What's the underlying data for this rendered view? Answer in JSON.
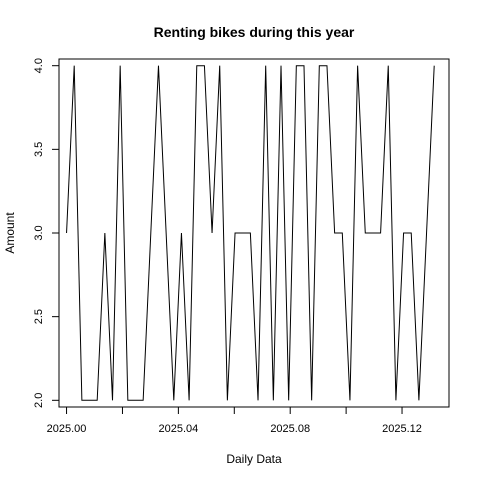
{
  "chart_data": {
    "type": "line",
    "title": "Renting bikes during this year",
    "xlabel": "Daily Data",
    "ylabel": "Amount",
    "xlim": [
      2024.9973,
      2025.1368
    ],
    "ylim": [
      1.96,
      4.04
    ],
    "x_ticks": [
      2025.0,
      2025.04,
      2025.08,
      2025.12
    ],
    "x_tick_labels": [
      "2025.00",
      "2025.04",
      "2025.08",
      "2025.12"
    ],
    "y_ticks": [
      2.0,
      2.5,
      3.0,
      3.5,
      4.0
    ],
    "y_tick_labels": [
      "2.0",
      "2.5",
      "3.0",
      "3.5",
      "4.0"
    ],
    "grid": false,
    "legend": "none",
    "line_color": "#000000",
    "x": [
      2025.0,
      2025.00274,
      2025.00548,
      2025.00822,
      2025.01096,
      2025.0137,
      2025.01644,
      2025.01918,
      2025.02192,
      2025.02466,
      2025.0274,
      2025.03014,
      2025.03288,
      2025.03562,
      2025.03836,
      2025.0411,
      2025.04384,
      2025.04658,
      2025.04932,
      2025.05205,
      2025.05479,
      2025.05753,
      2025.06027,
      2025.06301,
      2025.06575,
      2025.06849,
      2025.07123,
      2025.07397,
      2025.07671,
      2025.07945,
      2025.08219,
      2025.08493,
      2025.08767,
      2025.09041,
      2025.09315,
      2025.09589,
      2025.09863,
      2025.10137,
      2025.10411,
      2025.10685,
      2025.10959,
      2025.11233,
      2025.11507,
      2025.11781,
      2025.12055,
      2025.12329,
      2025.12603,
      2025.12877,
      2025.13151
    ],
    "values": [
      3,
      4,
      2,
      2,
      2,
      3,
      2,
      4,
      2,
      2,
      2,
      3,
      4,
      3,
      2,
      3,
      2,
      4,
      4,
      3,
      4,
      2,
      3,
      3,
      3,
      2,
      4,
      2,
      4,
      2,
      4,
      4,
      2,
      4,
      4,
      3,
      3,
      2,
      4,
      3,
      3,
      3,
      4,
      2,
      3,
      3,
      2,
      3,
      4
    ]
  }
}
